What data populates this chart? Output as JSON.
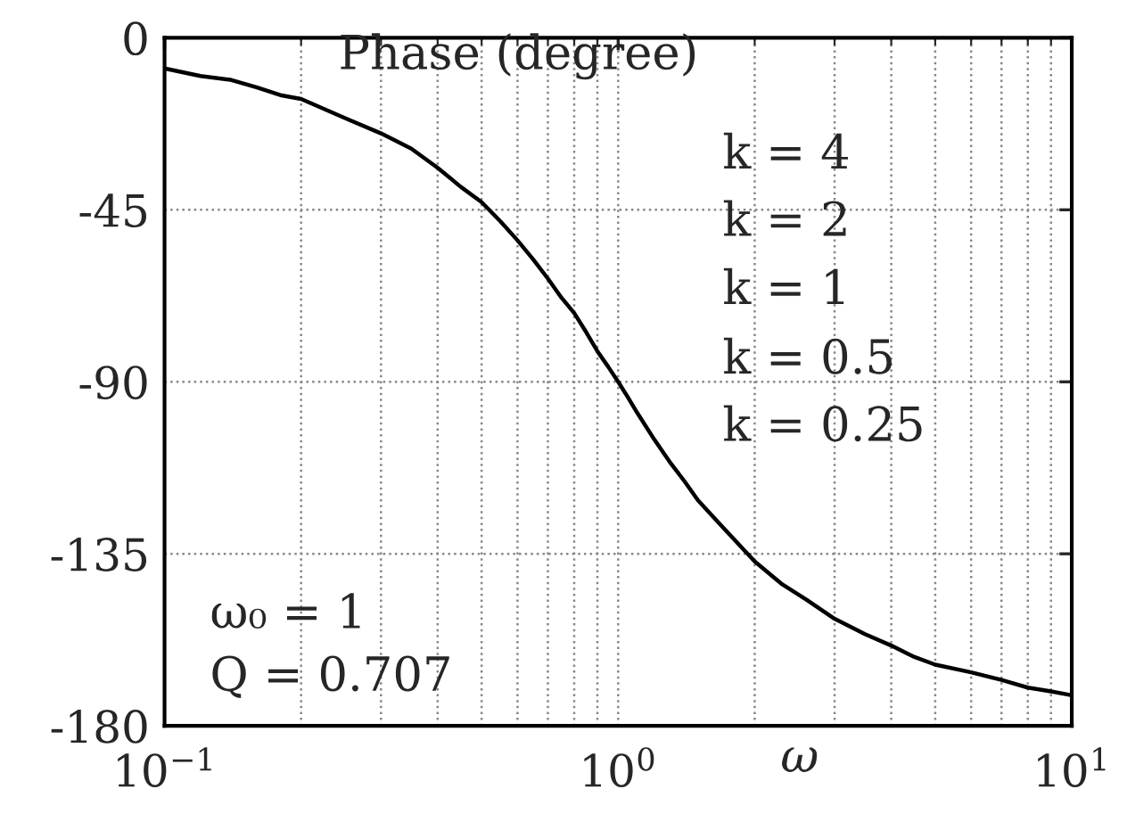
{
  "chart_data": {
    "type": "line",
    "title": "Phase (degree)",
    "xlabel": "ω",
    "x": [
      0.1,
      0.12,
      0.14,
      0.16,
      0.18,
      0.2,
      0.25,
      0.3,
      0.35,
      0.4,
      0.45,
      0.5,
      0.55,
      0.6,
      0.65,
      0.7,
      0.75,
      0.8,
      0.85,
      0.9,
      0.95,
      1,
      1.05,
      1.1,
      1.2,
      1.3,
      1.4,
      1.5,
      1.7,
      2,
      2.3,
      2.6,
      3,
      3.5,
      4,
      4.5,
      5,
      6,
      7,
      8,
      9,
      10
    ],
    "series": [
      {
        "color": "#000000",
        "values": [
          -8,
          -10,
          -11,
          -13,
          -15,
          -16,
          -21,
          -25,
          -29,
          -34,
          -39,
          -43,
          -48,
          -53,
          -58,
          -63,
          -68,
          -72,
          -77,
          -82,
          -86,
          -90,
          -94,
          -98,
          -105,
          -111,
          -116,
          -121,
          -128,
          -137,
          -143,
          -147,
          -152,
          -156,
          -159,
          -162,
          -164,
          -166,
          -168,
          -170,
          -171,
          -172
        ]
      }
    ],
    "xlim": [
      0.1,
      10
    ],
    "ylim": [
      -180,
      0
    ],
    "xticks": [
      {
        "value": 0.1,
        "label": "10$^{−1}$"
      },
      {
        "value": 0.2,
        "label": null
      },
      {
        "value": 0.3,
        "label": null
      },
      {
        "value": 0.4,
        "label": null
      },
      {
        "value": 0.5,
        "label": null
      },
      {
        "value": 0.6,
        "label": null
      },
      {
        "value": 0.7,
        "label": null
      },
      {
        "value": 0.8,
        "label": null
      },
      {
        "value": 0.9,
        "label": null
      },
      {
        "value": 1,
        "label": "10$^{0}$"
      },
      {
        "value": 2,
        "label": null
      },
      {
        "value": 3,
        "label": null
      },
      {
        "value": 4,
        "label": null
      },
      {
        "value": 5,
        "label": null
      },
      {
        "value": 6,
        "label": null
      },
      {
        "value": 7,
        "label": null
      },
      {
        "value": 8,
        "label": null
      },
      {
        "value": 9,
        "label": null
      },
      {
        "value": 10,
        "label": "10$^{1}$"
      }
    ],
    "yticks": [
      -180,
      -135,
      -90,
      -45,
      0
    ],
    "log": "x",
    "grid": true,
    "annotations": [
      "k = 4",
      "k = 2",
      "k = 1",
      "k = 0.5",
      "k = 0.25",
      "ω₀ = 1",
      "Q = 0.707"
    ]
  }
}
